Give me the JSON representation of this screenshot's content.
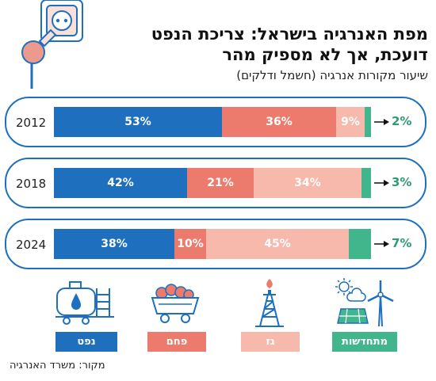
{
  "header": {
    "title_line1": "מפת האנרגיה בישראל: צריכת הנפט",
    "title_line2": "דועכת, אך לא מספיק מהר",
    "subtitle": "שיעור מקורות אנרגיה (חשמל ודלקים)"
  },
  "source": "מקור: משרד האנרגיה",
  "colors": {
    "oil": "#1f6fbf",
    "coal": "#ec7a6d",
    "gas": "#f6b9ab",
    "renewables": "#41b68d",
    "frame": "#1f6fbf"
  },
  "legend": [
    {
      "label": "נפט",
      "icon": "oil-tank-icon",
      "color": "#1f6fbf"
    },
    {
      "label": "פחם",
      "icon": "coal-cart-icon",
      "color": "#ec7a6d"
    },
    {
      "label": "גז",
      "icon": "gas-rig-icon",
      "color": "#f6b9ab"
    },
    {
      "label": "מתחדשות",
      "icon": "solar-wind-icon",
      "color": "#41b68d"
    }
  ],
  "chart_data": {
    "type": "bar",
    "orientation": "horizontal",
    "stacked": true,
    "unit": "%",
    "categories": [
      "2012",
      "2018",
      "2024"
    ],
    "series": [
      {
        "name": "נפט",
        "values": [
          53,
          42,
          38
        ],
        "labels": [
          "53%",
          "42%",
          "38%"
        ]
      },
      {
        "name": "פחם",
        "values": [
          36,
          21,
          10
        ],
        "labels": [
          "36%",
          "21%",
          "10%"
        ]
      },
      {
        "name": "גז",
        "values": [
          9,
          34,
          45
        ],
        "labels": [
          "9%",
          "34%",
          "45%"
        ]
      },
      {
        "name": "מתחדשות",
        "values": [
          2,
          3,
          7
        ],
        "labels": [
          "2%",
          "3%",
          "7%"
        ]
      }
    ]
  }
}
